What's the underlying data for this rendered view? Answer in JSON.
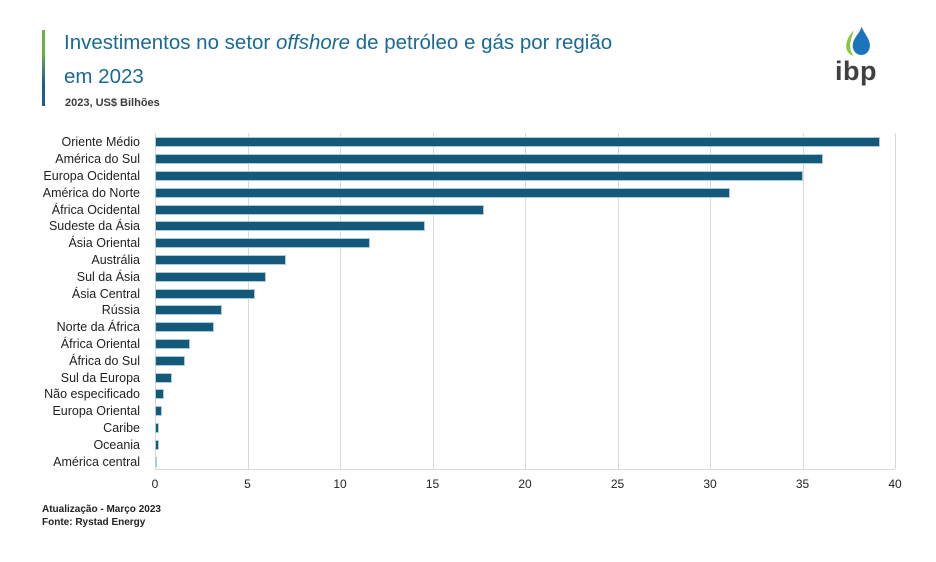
{
  "header": {
    "title_pre": "Investimentos no setor ",
    "title_italic": "offshore",
    "title_post": " de petróleo e gás por região",
    "title_line2": "em 2023",
    "subtitle": "2023, US$ Bilhões"
  },
  "logo": {
    "text": "ibp",
    "icon": "drop-icon"
  },
  "chart_data": {
    "type": "bar",
    "orientation": "horizontal",
    "title": "Investimentos no setor offshore de petróleo e gás por região em 2023",
    "subtitle": "2023, US$ Bilhões",
    "categories": [
      "Oriente Médio",
      "América do Sul",
      "Europa Ocidental",
      "América do Norte",
      "África Ocidental",
      "Sudeste da Ásia",
      "Ásia Oriental",
      "Austrália",
      "Sul da Ásia",
      "Ásia Central",
      "Rússia",
      "Norte da África",
      "África Oriental",
      "África do Sul",
      "Sul da Europa",
      "Não especificado",
      "Europa Oriental",
      "Caribe",
      "Oceania",
      "América central"
    ],
    "values": [
      39.2,
      36.1,
      35.0,
      31.1,
      17.8,
      14.6,
      11.6,
      7.1,
      6.0,
      5.4,
      3.6,
      3.2,
      1.9,
      1.6,
      0.9,
      0.5,
      0.4,
      0.2,
      0.2,
      0.1
    ],
    "xlabel": "",
    "ylabel": "",
    "xlim": [
      0,
      40
    ],
    "xticks": [
      0,
      5,
      10,
      15,
      20,
      25,
      30,
      35,
      40
    ],
    "grid": "vertical",
    "legend": "none"
  },
  "footer": {
    "line1": "Atualização - Março 2023",
    "line2": "Fonte: Rystad Energy"
  },
  "colors": {
    "bar": "#14587A",
    "bar_border": "#A9CBDD",
    "title": "#1A6B94",
    "grid": "#D9D9D9",
    "accent_green": "#6FAE46",
    "accent_blue": "#1F5C8B",
    "logo_green": "#8DC63F",
    "logo_blue": "#1C75BC",
    "logo_text": "#3F4041"
  }
}
